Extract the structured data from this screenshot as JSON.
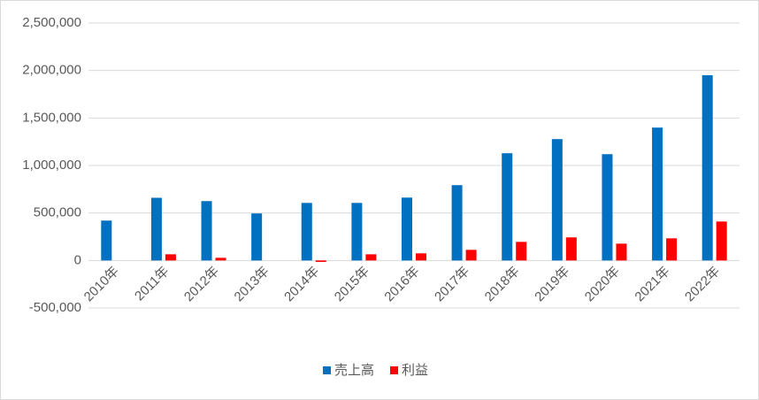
{
  "chart_data": {
    "type": "bar",
    "categories": [
      "2010年",
      "2011年",
      "2012年",
      "2013年",
      "2014年",
      "2015年",
      "2016年",
      "2017年",
      "2018年",
      "2019年",
      "2020年",
      "2021年",
      "2022年"
    ],
    "series": [
      {
        "name": "売上高",
        "color": "#0070c0",
        "values": [
          420000,
          660000,
          625000,
          495000,
          606000,
          606000,
          662000,
          793000,
          1129000,
          1278000,
          1119000,
          1399000,
          1950000
        ]
      },
      {
        "name": "利益",
        "color": "#ff0000",
        "values": [
          0,
          65000,
          28000,
          0,
          -15000,
          65000,
          75000,
          112000,
          196000,
          243000,
          177000,
          233000,
          410000
        ]
      }
    ],
    "ylim": [
      -500000,
      2500000
    ],
    "yticks": [
      {
        "value": -500000,
        "label": "-500,000"
      },
      {
        "value": 0,
        "label": "0"
      },
      {
        "value": 500000,
        "label": "500,000"
      },
      {
        "value": 1000000,
        "label": "1,000,000"
      },
      {
        "value": 1500000,
        "label": "1,500,000"
      },
      {
        "value": 2000000,
        "label": "2,000,000"
      },
      {
        "value": 2500000,
        "label": "2,500,000"
      }
    ],
    "grid": true,
    "legend": "bottom"
  }
}
